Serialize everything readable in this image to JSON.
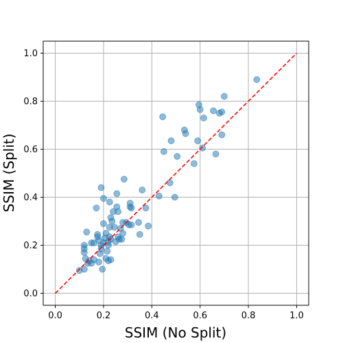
{
  "chart_data": {
    "type": "scatter",
    "title": "",
    "xlabel": "SSIM (No Split)",
    "ylabel": "SSIM (Split)",
    "xlim": [
      -0.05,
      1.05
    ],
    "ylim": [
      -0.05,
      1.05
    ],
    "xticks": [
      "0.0",
      "0.2",
      "0.4",
      "0.6",
      "0.8",
      "1.0"
    ],
    "yticks": [
      "0.0",
      "0.2",
      "0.4",
      "0.6",
      "0.8",
      "1.0"
    ],
    "grid": true,
    "series": [
      {
        "type": "scatter",
        "color": "#1f77b4",
        "alpha": 0.5,
        "points": [
          [
            0.1,
            0.095
          ],
          [
            0.12,
            0.1
          ],
          [
            0.125,
            0.145
          ],
          [
            0.12,
            0.17
          ],
          [
            0.12,
            0.185
          ],
          [
            0.12,
            0.2
          ],
          [
            0.13,
            0.255
          ],
          [
            0.135,
            0.125
          ],
          [
            0.14,
            0.135
          ],
          [
            0.15,
            0.125
          ],
          [
            0.15,
            0.21
          ],
          [
            0.16,
            0.14
          ],
          [
            0.16,
            0.21
          ],
          [
            0.17,
            0.355
          ],
          [
            0.175,
            0.235
          ],
          [
            0.175,
            0.245
          ],
          [
            0.18,
            0.22
          ],
          [
            0.18,
            0.13
          ],
          [
            0.185,
            0.165
          ],
          [
            0.19,
            0.185
          ],
          [
            0.19,
            0.2
          ],
          [
            0.19,
            0.44
          ],
          [
            0.195,
            0.1
          ],
          [
            0.2,
            0.395
          ],
          [
            0.2,
            0.29
          ],
          [
            0.2,
            0.21
          ],
          [
            0.205,
            0.23
          ],
          [
            0.21,
            0.145
          ],
          [
            0.21,
            0.25
          ],
          [
            0.215,
            0.175
          ],
          [
            0.22,
            0.135
          ],
          [
            0.22,
            0.2
          ],
          [
            0.22,
            0.215
          ],
          [
            0.225,
            0.235
          ],
          [
            0.225,
            0.275
          ],
          [
            0.225,
            0.38
          ],
          [
            0.23,
            0.225
          ],
          [
            0.23,
            0.14
          ],
          [
            0.23,
            0.315
          ],
          [
            0.235,
            0.3
          ],
          [
            0.24,
            0.34
          ],
          [
            0.245,
            0.275
          ],
          [
            0.25,
            0.215
          ],
          [
            0.255,
            0.36
          ],
          [
            0.255,
            0.415
          ],
          [
            0.26,
            0.34
          ],
          [
            0.26,
            0.235
          ],
          [
            0.265,
            0.225
          ],
          [
            0.27,
            0.27
          ],
          [
            0.275,
            0.225
          ],
          [
            0.28,
            0.25
          ],
          [
            0.28,
            0.295
          ],
          [
            0.285,
            0.475
          ],
          [
            0.295,
            0.295
          ],
          [
            0.305,
            0.285
          ],
          [
            0.31,
            0.36
          ],
          [
            0.31,
            0.375
          ],
          [
            0.315,
            0.285
          ],
          [
            0.315,
            0.355
          ],
          [
            0.345,
            0.295
          ],
          [
            0.35,
            0.245
          ],
          [
            0.36,
            0.43
          ],
          [
            0.375,
            0.355
          ],
          [
            0.385,
            0.28
          ],
          [
            0.43,
            0.405
          ],
          [
            0.445,
            0.735
          ],
          [
            0.45,
            0.59
          ],
          [
            0.475,
            0.46
          ],
          [
            0.48,
            0.635
          ],
          [
            0.495,
            0.4
          ],
          [
            0.505,
            0.57
          ],
          [
            0.535,
            0.68
          ],
          [
            0.54,
            0.665
          ],
          [
            0.575,
            0.54
          ],
          [
            0.59,
            0.635
          ],
          [
            0.595,
            0.785
          ],
          [
            0.6,
            0.765
          ],
          [
            0.61,
            0.605
          ],
          [
            0.615,
            0.73
          ],
          [
            0.655,
            0.76
          ],
          [
            0.665,
            0.58
          ],
          [
            0.68,
            0.75
          ],
          [
            0.69,
            0.755
          ],
          [
            0.69,
            0.66
          ],
          [
            0.7,
            0.82
          ],
          [
            0.835,
            0.89
          ]
        ]
      },
      {
        "type": "line",
        "style": "dashed",
        "color": "#ff0000",
        "x": [
          0,
          1
        ],
        "y": [
          0,
          1
        ]
      }
    ]
  }
}
